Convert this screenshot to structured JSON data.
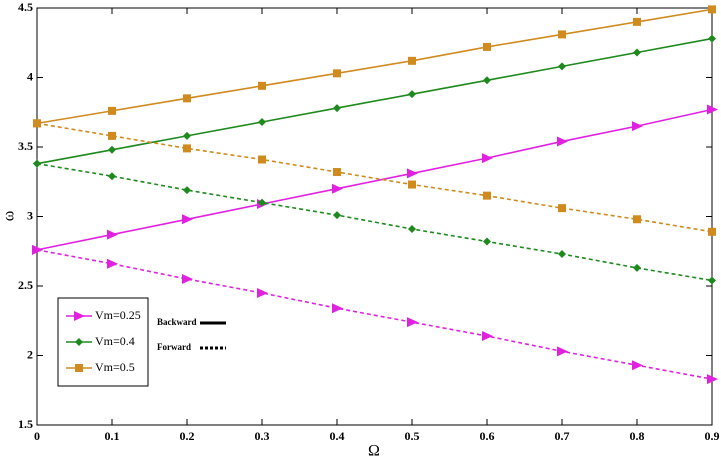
{
  "chart_data": {
    "type": "line",
    "x_label": "Ω",
    "y_label": "ω",
    "x": [
      0,
      0.1,
      0.2,
      0.3,
      0.4,
      0.5,
      0.6,
      0.7,
      0.8,
      0.9
    ],
    "xlim": [
      0,
      0.9
    ],
    "xticks": [
      0,
      0.1,
      0.2,
      0.3,
      0.4,
      0.5,
      0.6,
      0.7,
      0.8,
      0.9
    ],
    "ylim": [
      1.5,
      4.5
    ],
    "yticks": [
      1.5,
      2,
      2.5,
      3,
      3.5,
      4,
      4.5
    ],
    "series": [
      {
        "name": "Vm=0.25",
        "color": "#e022e0",
        "marker": "triangle",
        "backward_values": [
          2.76,
          2.87,
          2.98,
          3.09,
          3.2,
          3.31,
          3.42,
          3.54,
          3.65,
          3.77
        ],
        "forward_values": [
          2.76,
          2.66,
          2.55,
          2.45,
          2.34,
          2.24,
          2.14,
          2.03,
          1.93,
          1.83
        ]
      },
      {
        "name": "Vm=0.4",
        "color": "#1e8a1e",
        "marker": "diamond",
        "backward_values": [
          3.38,
          3.48,
          3.58,
          3.68,
          3.78,
          3.88,
          3.98,
          4.08,
          4.18,
          4.28
        ],
        "forward_values": [
          3.38,
          3.29,
          3.19,
          3.1,
          3.01,
          2.91,
          2.82,
          2.73,
          2.63,
          2.54
        ]
      },
      {
        "name": "Vm=0.5",
        "color": "#d08a1e",
        "marker": "square",
        "backward_values": [
          3.67,
          3.76,
          3.85,
          3.94,
          4.03,
          4.12,
          4.22,
          4.31,
          4.4,
          4.49
        ],
        "forward_values": [
          3.67,
          3.58,
          3.49,
          3.41,
          3.32,
          3.23,
          3.15,
          3.06,
          2.98,
          2.89
        ]
      }
    ],
    "style_legend": [
      {
        "label": "Backward",
        "dash": "solid"
      },
      {
        "label": "Forward",
        "dash": "dotted"
      }
    ]
  }
}
